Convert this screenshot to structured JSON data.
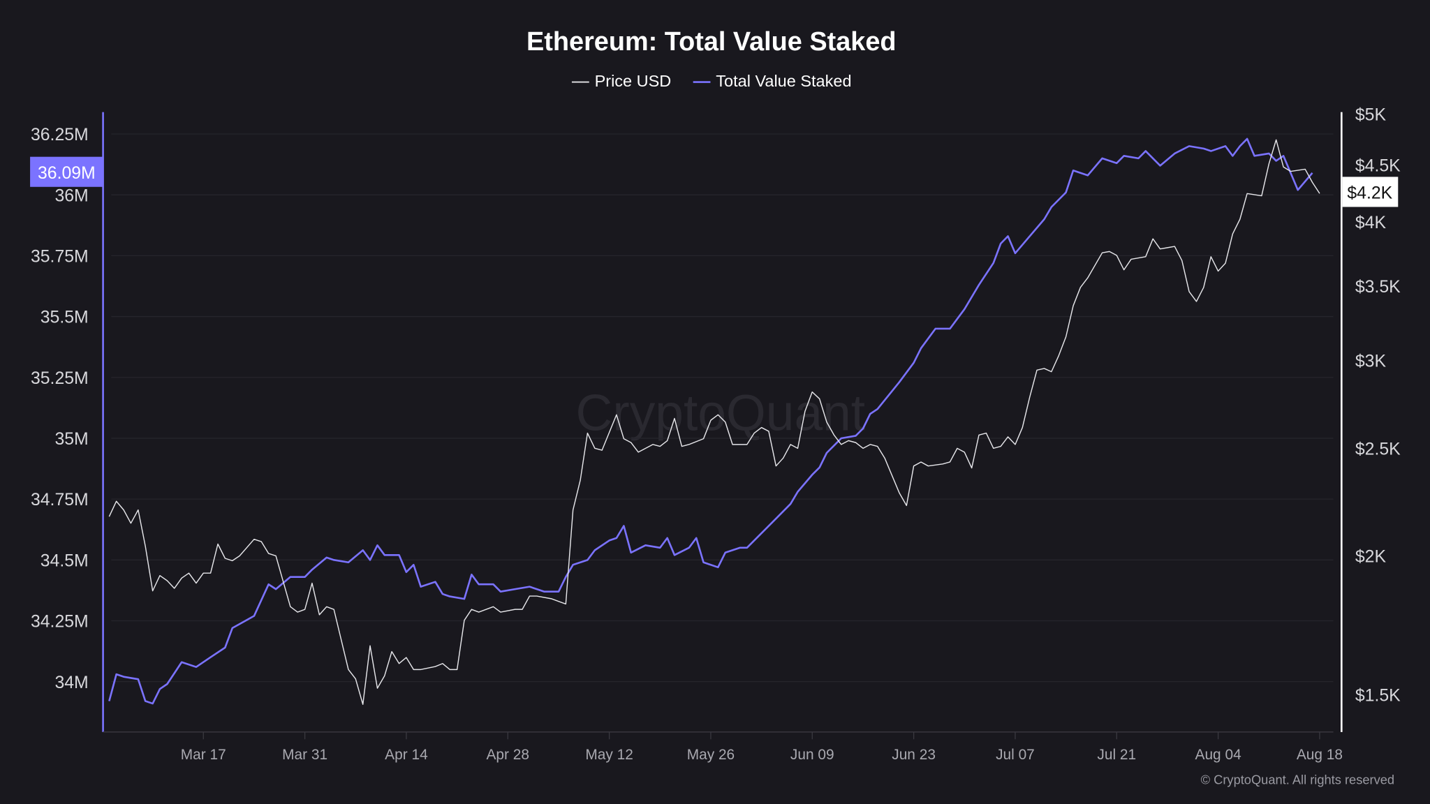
{
  "chart_data": {
    "type": "line",
    "title": "Ethereum: Total Value Staked",
    "legend": {
      "placement": "top-center",
      "entries": [
        "Price USD",
        "Total Value Staked"
      ]
    },
    "x_ticks": [
      "Mar 17",
      "Mar 31",
      "Apr 14",
      "Apr 28",
      "May 12",
      "May 26",
      "Jun 09",
      "Jun 23",
      "Jul 07",
      "Jul 21",
      "Aug 04",
      "Aug 18"
    ],
    "x_tick_dates": [
      "03-17",
      "03-31",
      "04-14",
      "04-28",
      "05-12",
      "05-26",
      "06-09",
      "06-23",
      "07-07",
      "07-21",
      "08-04",
      "08-18"
    ],
    "left_axis": {
      "ticks": [
        34,
        34.25,
        34.5,
        34.75,
        35,
        35.25,
        35.5,
        35.75,
        36,
        36.25
      ],
      "tick_labels": [
        "34M",
        "34.25M",
        "34.5M",
        "34.75M",
        "35M",
        "35.25M",
        "35.5M",
        "35.75M",
        "36M",
        "36.25M"
      ],
      "unit": "M",
      "range": [
        33.83,
        36.35
      ],
      "last_value_label": "36.09M"
    },
    "right_axis": {
      "scale": "log",
      "ticks": [
        1500,
        2000,
        2500,
        3000,
        3500,
        4000,
        4500,
        5000
      ],
      "tick_labels": [
        "$1.5K",
        "$2K",
        "$2.5K",
        "$3K",
        "$3.5K",
        "$4K",
        "$4.5K",
        "$5K"
      ],
      "range": [
        1400,
        5100
      ],
      "last_value_label": "$4.2K"
    },
    "grid": true,
    "colors": {
      "price": "#e6e6ea",
      "staked": "#7b73ff",
      "background": "#19181e",
      "grid": "#26252c"
    },
    "series": [
      {
        "name": "Total Value Staked",
        "axis": "left",
        "unit": "M",
        "points": [
          [
            "03-04",
            33.92
          ],
          [
            "03-05",
            34.03
          ],
          [
            "03-06",
            34.02
          ],
          [
            "03-08",
            34.01
          ],
          [
            "03-09",
            33.92
          ],
          [
            "03-10",
            33.91
          ],
          [
            "03-11",
            33.97
          ],
          [
            "03-12",
            33.99
          ],
          [
            "03-14",
            34.08
          ],
          [
            "03-16",
            34.06
          ],
          [
            "03-18",
            34.1
          ],
          [
            "03-20",
            34.14
          ],
          [
            "03-21",
            34.22
          ],
          [
            "03-24",
            34.27
          ],
          [
            "03-26",
            34.4
          ],
          [
            "03-27",
            34.38
          ],
          [
            "03-29",
            34.43
          ],
          [
            "03-31",
            34.43
          ],
          [
            "04-01",
            34.46
          ],
          [
            "04-03",
            34.51
          ],
          [
            "04-04",
            34.5
          ],
          [
            "04-06",
            34.49
          ],
          [
            "04-08",
            34.54
          ],
          [
            "04-09",
            34.5
          ],
          [
            "04-10",
            34.56
          ],
          [
            "04-11",
            34.52
          ],
          [
            "04-13",
            34.52
          ],
          [
            "04-14",
            34.45
          ],
          [
            "04-15",
            34.48
          ],
          [
            "04-16",
            34.39
          ],
          [
            "04-18",
            34.41
          ],
          [
            "04-19",
            34.36
          ],
          [
            "04-20",
            34.35
          ],
          [
            "04-22",
            34.34
          ],
          [
            "04-23",
            34.44
          ],
          [
            "04-24",
            34.4
          ],
          [
            "04-26",
            34.4
          ],
          [
            "04-27",
            34.37
          ],
          [
            "04-29",
            34.38
          ],
          [
            "05-01",
            34.39
          ],
          [
            "05-03",
            34.37
          ],
          [
            "05-05",
            34.37
          ],
          [
            "05-06",
            34.43
          ],
          [
            "05-07",
            34.48
          ],
          [
            "05-09",
            34.5
          ],
          [
            "05-10",
            34.54
          ],
          [
            "05-12",
            34.58
          ],
          [
            "05-13",
            34.59
          ],
          [
            "05-14",
            34.64
          ],
          [
            "05-15",
            34.53
          ],
          [
            "05-17",
            34.56
          ],
          [
            "05-19",
            34.55
          ],
          [
            "05-20",
            34.59
          ],
          [
            "05-21",
            34.52
          ],
          [
            "05-23",
            34.55
          ],
          [
            "05-24",
            34.59
          ],
          [
            "05-25",
            34.49
          ],
          [
            "05-27",
            34.47
          ],
          [
            "05-28",
            34.53
          ],
          [
            "05-30",
            34.55
          ],
          [
            "05-31",
            34.55
          ],
          [
            "06-02",
            34.61
          ],
          [
            "06-04",
            34.67
          ],
          [
            "06-06",
            34.73
          ],
          [
            "06-07",
            34.78
          ],
          [
            "06-09",
            34.85
          ],
          [
            "06-10",
            34.88
          ],
          [
            "06-11",
            34.94
          ],
          [
            "06-12",
            34.97
          ],
          [
            "06-13",
            35.0
          ],
          [
            "06-15",
            35.01
          ],
          [
            "06-16",
            35.04
          ],
          [
            "06-17",
            35.1
          ],
          [
            "06-18",
            35.12
          ],
          [
            "06-21",
            35.23
          ],
          [
            "06-23",
            35.31
          ],
          [
            "06-24",
            35.37
          ],
          [
            "06-26",
            35.45
          ],
          [
            "06-28",
            35.45
          ],
          [
            "06-30",
            35.53
          ],
          [
            "07-02",
            35.63
          ],
          [
            "07-04",
            35.72
          ],
          [
            "07-05",
            35.8
          ],
          [
            "07-06",
            35.83
          ],
          [
            "07-07",
            35.76
          ],
          [
            "07-09",
            35.83
          ],
          [
            "07-11",
            35.9
          ],
          [
            "07-12",
            35.95
          ],
          [
            "07-14",
            36.01
          ],
          [
            "07-15",
            36.1
          ],
          [
            "07-17",
            36.08
          ],
          [
            "07-19",
            36.15
          ],
          [
            "07-21",
            36.13
          ],
          [
            "07-22",
            36.16
          ],
          [
            "07-24",
            36.15
          ],
          [
            "07-25",
            36.18
          ],
          [
            "07-27",
            36.12
          ],
          [
            "07-29",
            36.17
          ],
          [
            "07-31",
            36.2
          ],
          [
            "08-02",
            36.19
          ],
          [
            "08-03",
            36.18
          ],
          [
            "08-05",
            36.2
          ],
          [
            "08-06",
            36.16
          ],
          [
            "08-07",
            36.2
          ],
          [
            "08-08",
            36.23
          ],
          [
            "08-09",
            36.16
          ],
          [
            "08-11",
            36.17
          ],
          [
            "08-12",
            36.14
          ],
          [
            "08-13",
            36.16
          ],
          [
            "08-15",
            36.02
          ],
          [
            "08-17",
            36.09
          ]
        ]
      },
      {
        "name": "Price USD",
        "axis": "right",
        "unit": "USD",
        "points": [
          [
            "03-04",
            2170
          ],
          [
            "03-05",
            2240
          ],
          [
            "03-06",
            2200
          ],
          [
            "03-07",
            2140
          ],
          [
            "03-08",
            2200
          ],
          [
            "03-09",
            2040
          ],
          [
            "03-10",
            1860
          ],
          [
            "03-11",
            1920
          ],
          [
            "03-12",
            1900
          ],
          [
            "03-13",
            1870
          ],
          [
            "03-14",
            1910
          ],
          [
            "03-15",
            1930
          ],
          [
            "03-16",
            1890
          ],
          [
            "03-17",
            1930
          ],
          [
            "03-18",
            1930
          ],
          [
            "03-19",
            2050
          ],
          [
            "03-20",
            1990
          ],
          [
            "03-21",
            1980
          ],
          [
            "03-22",
            2000
          ],
          [
            "03-24",
            2070
          ],
          [
            "03-25",
            2060
          ],
          [
            "03-26",
            2010
          ],
          [
            "03-27",
            2000
          ],
          [
            "03-29",
            1800
          ],
          [
            "03-30",
            1780
          ],
          [
            "03-31",
            1790
          ],
          [
            "04-01",
            1890
          ],
          [
            "04-02",
            1770
          ],
          [
            "04-03",
            1800
          ],
          [
            "04-04",
            1790
          ],
          [
            "04-06",
            1580
          ],
          [
            "04-07",
            1550
          ],
          [
            "04-08",
            1470
          ],
          [
            "04-09",
            1660
          ],
          [
            "04-10",
            1520
          ],
          [
            "04-11",
            1560
          ],
          [
            "04-12",
            1640
          ],
          [
            "04-13",
            1600
          ],
          [
            "04-14",
            1620
          ],
          [
            "04-15",
            1580
          ],
          [
            "04-16",
            1580
          ],
          [
            "04-18",
            1590
          ],
          [
            "04-19",
            1600
          ],
          [
            "04-20",
            1580
          ],
          [
            "04-21",
            1580
          ],
          [
            "04-22",
            1750
          ],
          [
            "04-23",
            1790
          ],
          [
            "04-24",
            1780
          ],
          [
            "04-26",
            1800
          ],
          [
            "04-27",
            1780
          ],
          [
            "04-29",
            1790
          ],
          [
            "04-30",
            1790
          ],
          [
            "05-01",
            1840
          ],
          [
            "05-02",
            1840
          ],
          [
            "05-04",
            1830
          ],
          [
            "05-05",
            1820
          ],
          [
            "05-06",
            1810
          ],
          [
            "05-07",
            2200
          ],
          [
            "05-08",
            2340
          ],
          [
            "05-09",
            2580
          ],
          [
            "05-10",
            2500
          ],
          [
            "05-11",
            2490
          ],
          [
            "05-13",
            2680
          ],
          [
            "05-14",
            2550
          ],
          [
            "05-15",
            2530
          ],
          [
            "05-16",
            2480
          ],
          [
            "05-18",
            2520
          ],
          [
            "05-19",
            2510
          ],
          [
            "05-20",
            2540
          ],
          [
            "05-21",
            2660
          ],
          [
            "05-22",
            2510
          ],
          [
            "05-23",
            2520
          ],
          [
            "05-25",
            2550
          ],
          [
            "05-26",
            2650
          ],
          [
            "05-27",
            2680
          ],
          [
            "05-28",
            2640
          ],
          [
            "05-29",
            2520
          ],
          [
            "05-31",
            2520
          ],
          [
            "06-01",
            2580
          ],
          [
            "06-02",
            2610
          ],
          [
            "06-03",
            2590
          ],
          [
            "06-04",
            2410
          ],
          [
            "06-05",
            2450
          ],
          [
            "06-06",
            2520
          ],
          [
            "06-07",
            2500
          ],
          [
            "06-08",
            2700
          ],
          [
            "06-09",
            2810
          ],
          [
            "06-10",
            2770
          ],
          [
            "06-11",
            2640
          ],
          [
            "06-12",
            2570
          ],
          [
            "06-13",
            2520
          ],
          [
            "06-14",
            2540
          ],
          [
            "06-15",
            2530
          ],
          [
            "06-16",
            2500
          ],
          [
            "06-17",
            2520
          ],
          [
            "06-18",
            2510
          ],
          [
            "06-19",
            2450
          ],
          [
            "06-21",
            2280
          ],
          [
            "06-22",
            2220
          ],
          [
            "06-23",
            2410
          ],
          [
            "06-24",
            2430
          ],
          [
            "06-25",
            2410
          ],
          [
            "06-27",
            2420
          ],
          [
            "06-28",
            2430
          ],
          [
            "06-29",
            2500
          ],
          [
            "06-30",
            2480
          ],
          [
            "07-01",
            2400
          ],
          [
            "07-02",
            2570
          ],
          [
            "07-03",
            2580
          ],
          [
            "07-04",
            2500
          ],
          [
            "07-05",
            2510
          ],
          [
            "07-06",
            2560
          ],
          [
            "07-07",
            2520
          ],
          [
            "07-08",
            2610
          ],
          [
            "07-09",
            2780
          ],
          [
            "07-10",
            2940
          ],
          [
            "07-11",
            2950
          ],
          [
            "07-12",
            2930
          ],
          [
            "07-13",
            3030
          ],
          [
            "07-14",
            3150
          ],
          [
            "07-15",
            3360
          ],
          [
            "07-16",
            3490
          ],
          [
            "07-17",
            3560
          ],
          [
            "07-19",
            3750
          ],
          [
            "07-20",
            3760
          ],
          [
            "07-21",
            3730
          ],
          [
            "07-22",
            3620
          ],
          [
            "07-23",
            3700
          ],
          [
            "07-25",
            3720
          ],
          [
            "07-26",
            3860
          ],
          [
            "07-27",
            3780
          ],
          [
            "07-28",
            3790
          ],
          [
            "07-29",
            3800
          ],
          [
            "07-30",
            3690
          ],
          [
            "07-31",
            3460
          ],
          [
            "08-01",
            3390
          ],
          [
            "08-02",
            3490
          ],
          [
            "08-03",
            3720
          ],
          [
            "08-04",
            3610
          ],
          [
            "08-05",
            3670
          ],
          [
            "08-06",
            3900
          ],
          [
            "08-07",
            4020
          ],
          [
            "08-08",
            4240
          ],
          [
            "08-10",
            4220
          ],
          [
            "08-11",
            4510
          ],
          [
            "08-12",
            4740
          ],
          [
            "08-13",
            4480
          ],
          [
            "08-14",
            4440
          ],
          [
            "08-16",
            4460
          ],
          [
            "08-17",
            4340
          ],
          [
            "08-18",
            4240
          ]
        ]
      }
    ]
  },
  "watermark": "CryptoQuant",
  "footer": "© CryptoQuant. All rights reserved"
}
